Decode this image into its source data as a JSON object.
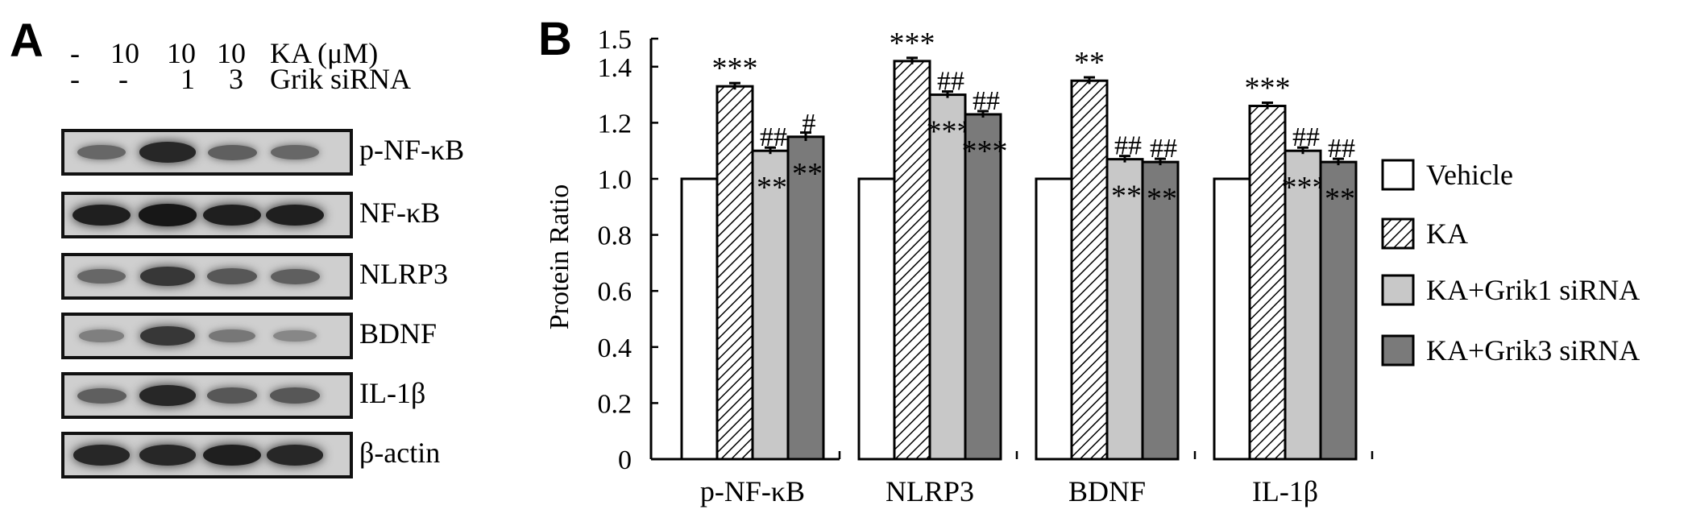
{
  "panel_a": {
    "letter": "A",
    "header_rows": [
      {
        "label": "KA (μM)",
        "values": [
          "-",
          "10",
          "10",
          "10"
        ]
      },
      {
        "label": "Grik siRNA",
        "values": [
          "-",
          "-",
          "1",
          "3"
        ]
      }
    ],
    "blots": [
      {
        "label": "p-NF-κB",
        "intensity": [
          0.45,
          0.85,
          0.5,
          0.45
        ]
      },
      {
        "label": "NF-κB",
        "intensity": [
          0.9,
          0.95,
          0.9,
          0.9
        ]
      },
      {
        "label": "NLRP3",
        "intensity": [
          0.45,
          0.75,
          0.55,
          0.5
        ]
      },
      {
        "label": "BDNF",
        "intensity": [
          0.3,
          0.75,
          0.35,
          0.25
        ]
      },
      {
        "label": "IL-1β",
        "intensity": [
          0.5,
          0.85,
          0.55,
          0.55
        ]
      },
      {
        "label": "β-actin",
        "intensity": [
          0.85,
          0.85,
          0.9,
          0.85
        ]
      }
    ]
  },
  "chart_data": {
    "letter": "B",
    "type": "bar",
    "ylabel": "Protein Ratio",
    "ylim": [
      0,
      1.5
    ],
    "yticks": [
      0,
      0.2,
      0.4,
      0.6,
      0.8,
      1.0,
      1.2,
      1.4,
      1.5
    ],
    "ytick_labels": [
      "0",
      "0.2",
      "0.4",
      "0.6",
      "0.8",
      "1.0",
      "1.2",
      "1.4",
      "1.5"
    ],
    "categories": [
      "p-NF-κB",
      "NLRP3",
      "BDNF",
      "IL-1β"
    ],
    "series": [
      {
        "name": "Vehicle",
        "pattern": "open",
        "values": [
          1.0,
          1.0,
          1.0,
          1.0
        ],
        "errors": [
          0,
          0,
          0,
          0
        ],
        "star": [
          "",
          "",
          "",
          ""
        ],
        "hash": [
          "",
          "",
          "",
          ""
        ]
      },
      {
        "name": "KA",
        "pattern": "hatched",
        "values": [
          1.33,
          1.42,
          1.35,
          1.26
        ],
        "errors": [
          0.01,
          0.008,
          0.012,
          0.008
        ],
        "star": [
          "***",
          "***",
          "**",
          "***"
        ],
        "hash": [
          "",
          "",
          "",
          ""
        ]
      },
      {
        "name": "KA+Grik1 siRNA",
        "pattern": "light-gray",
        "values": [
          1.1,
          1.3,
          1.07,
          1.1
        ],
        "errors": [
          0.008,
          0.006,
          0.005,
          0.005
        ],
        "star": [
          "**",
          "***",
          "**",
          "***"
        ],
        "hash": [
          "##",
          "##",
          "##",
          "##"
        ]
      },
      {
        "name": "KA+Grik3 siRNA",
        "pattern": "dark-gray",
        "values": [
          1.15,
          1.23,
          1.06,
          1.06
        ],
        "errors": [
          0.015,
          0.01,
          0.005,
          0.006
        ],
        "star": [
          "**",
          "***",
          "**",
          "**"
        ],
        "hash": [
          "#",
          "##",
          "##",
          "##"
        ]
      }
    ],
    "legend_position": "right",
    "grid": false,
    "colors": {
      "open": "#ffffff",
      "hatched": "#ffffff",
      "light-gray": "#c8c8c8",
      "dark-gray": "#7a7a7a",
      "outline": "#000000"
    }
  }
}
